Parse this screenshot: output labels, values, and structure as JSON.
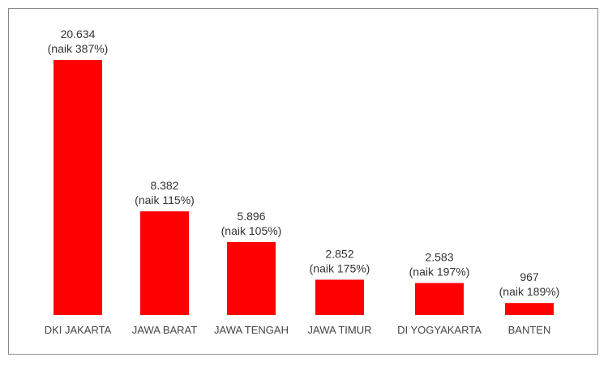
{
  "chart_data": {
    "type": "bar",
    "categories": [
      "DKI JAKARTA",
      "JAWA BARAT",
      "JAWA TENGAH",
      "JAWA TIMUR",
      "DI YOGYAKARTA",
      "BANTEN"
    ],
    "values": [
      20634,
      8382,
      5896,
      2852,
      2583,
      967
    ],
    "value_labels": [
      "20.634",
      "8.382",
      "5.896",
      "2.852",
      "2.583",
      "967"
    ],
    "increase_labels": [
      "(naik 387%)",
      "(naik 115%)",
      "(naik 105%)",
      "(naik 175%)",
      "(naik 197%)",
      "(naik 189%)"
    ],
    "title": "",
    "xlabel": "",
    "ylabel": "",
    "ylim": [
      0,
      20634
    ],
    "grid": false,
    "legend": "none",
    "bar_color": "#ff0000"
  }
}
